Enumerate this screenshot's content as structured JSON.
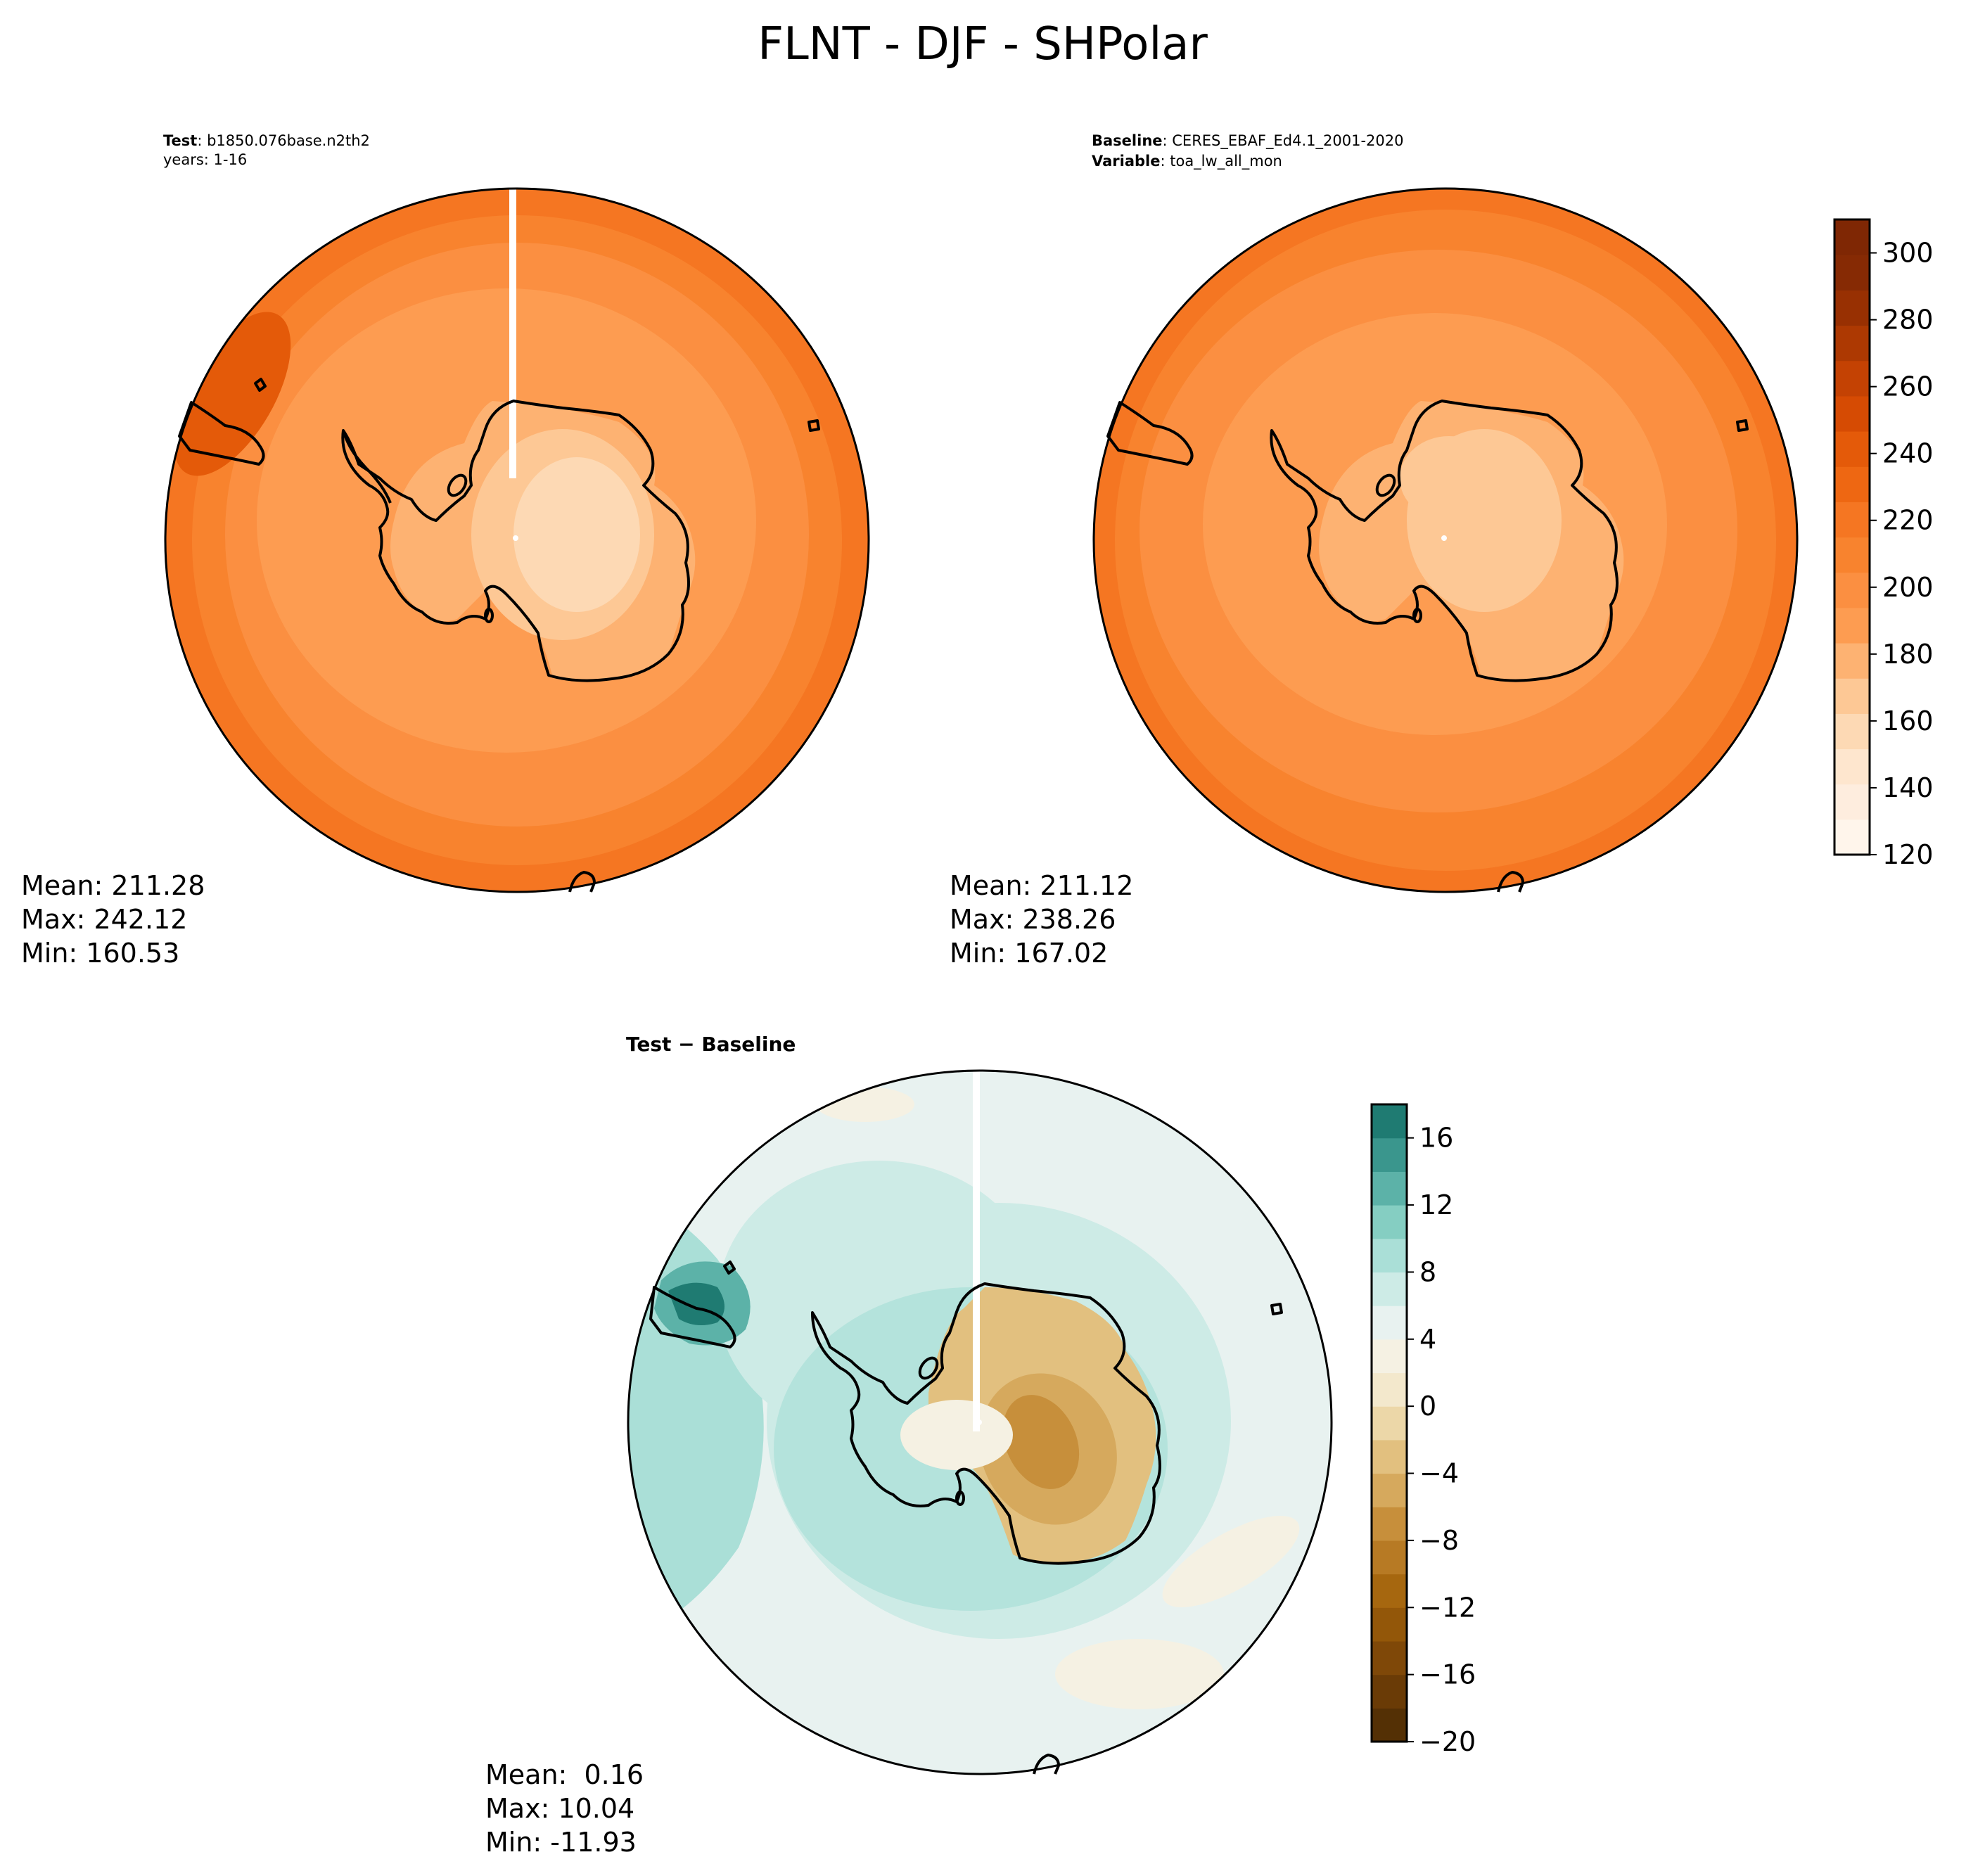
{
  "title": "FLNT - DJF - SHPolar",
  "colors": {
    "orange_bands": [
      "#fff5eb",
      "#feedde",
      "#fee6ce",
      "#fdd9b4",
      "#fdc895",
      "#fdb272",
      "#fd9c51",
      "#fb8f41",
      "#f8832e",
      "#f57622",
      "#ee6712",
      "#e45a09",
      "#d64b03",
      "#c44203",
      "#ad3902",
      "#983002",
      "#862a04",
      "#7f2704"
    ],
    "brbg_bands": [
      "#543005",
      "#6a3b06",
      "#7f4808",
      "#935709",
      "#a6670f",
      "#b77a24",
      "#c78f3b",
      "#d6a95d",
      "#e2c07f",
      "#ecd7a8",
      "#f3e8cc",
      "#f5f1e3",
      "#e8f2f0",
      "#cdebe6",
      "#aadfd7",
      "#85cec2",
      "#5cb2a8",
      "#3a968d",
      "#1f7b72",
      "#0c635a",
      "#00493e"
    ],
    "land_outline": "#000000"
  },
  "chart_data": [
    {
      "type": "heatmap",
      "projection": "south polar stereographic",
      "label_bold": "Test",
      "label_rest": ": b1850.076base.n2th2",
      "label_line2": "years: 1-16",
      "variable": "FLNT",
      "season": "DJF",
      "region": "SHPolar",
      "stats": {
        "mean": "Mean: 211.28",
        "max": "Max: 242.12",
        "min": "Min: 160.53"
      },
      "mean": 211.28,
      "max": 242.12,
      "min": 160.53,
      "colormap": "Oranges"
    },
    {
      "type": "heatmap",
      "projection": "south polar stereographic",
      "label_bold": "Baseline",
      "label_rest": ": CERES_EBAF_Ed4.1_2001-2020",
      "label2_bold": "Variable",
      "label2_rest": ": toa_lw_all_mon",
      "stats": {
        "mean": "Mean: 211.12",
        "max": "Max: 238.26",
        "min": "Min: 167.02"
      },
      "mean": 211.12,
      "max": 238.26,
      "min": 167.02,
      "colormap": "Oranges",
      "colorbar": {
        "ticks": [
          120,
          140,
          160,
          180,
          200,
          220,
          240,
          260,
          280,
          300
        ],
        "range": [
          120,
          310
        ]
      }
    },
    {
      "type": "heatmap",
      "projection": "south polar stereographic",
      "title": "Test − Baseline",
      "stats": {
        "mean": "Mean:  0.16",
        "max": "Max: 10.04",
        "min": "Min: -11.93"
      },
      "mean": 0.16,
      "max": 10.04,
      "min": -11.93,
      "colormap": "BrBG",
      "colorbar": {
        "ticks": [
          16,
          12,
          8,
          4,
          0,
          -4,
          -8,
          -12,
          -16,
          -20
        ],
        "tick_labels": [
          "16",
          "12",
          "8",
          "4",
          "0",
          "−4",
          "−8",
          "−12",
          "−16",
          "−20"
        ],
        "range": [
          -20,
          18
        ]
      }
    }
  ]
}
